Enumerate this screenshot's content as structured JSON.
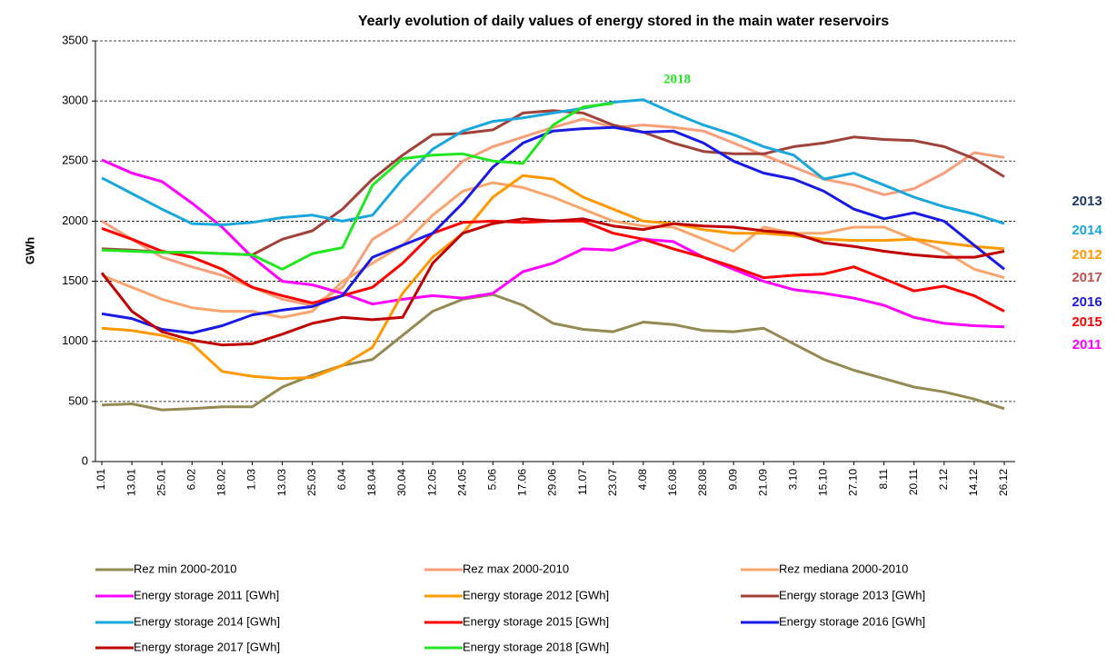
{
  "chart_data": {
    "type": "line",
    "title": "Yearly evolution of daily values of energy stored in the main water reservoirs",
    "y_label": "GWh",
    "categories": [
      "1.01",
      "13.01",
      "25.01",
      "6.02",
      "18.02",
      "1.03",
      "13.03",
      "25.03",
      "6.04",
      "18.04",
      "30.04",
      "12.05",
      "24.05",
      "5.06",
      "17.06",
      "29.06",
      "11.07",
      "23.07",
      "4.08",
      "16.08",
      "28.08",
      "9.09",
      "21.09",
      "3.10",
      "15.10",
      "27.10",
      "8.11",
      "20.11",
      "2.12",
      "14.12",
      "26.12"
    ],
    "ylim": [
      0,
      3500
    ],
    "yticks": [
      0,
      500,
      1000,
      1500,
      2000,
      2500,
      3000,
      3500
    ],
    "grid": true,
    "series": [
      {
        "name": "Rez min 2000-2010",
        "color": "#948A54",
        "values": [
          470,
          480,
          430,
          440,
          455,
          455,
          620,
          720,
          800,
          850,
          1050,
          1250,
          1350,
          1390,
          1300,
          1150,
          1100,
          1080,
          1160,
          1140,
          1090,
          1080,
          1110,
          980,
          850,
          760,
          690,
          620,
          580,
          520,
          440
        ]
      },
      {
        "name": "Rez max 2000-2010",
        "color": "#F79E7A",
        "values": [
          2000,
          1850,
          1700,
          1620,
          1550,
          1450,
          1350,
          1300,
          1450,
          1850,
          2000,
          2250,
          2500,
          2620,
          2700,
          2780,
          2850,
          2780,
          2800,
          2780,
          2750,
          2650,
          2550,
          2450,
          2350,
          2300,
          2220,
          2270,
          2400,
          2570,
          2530
        ]
      },
      {
        "name": "Rez mediana 2000-2010",
        "color": "#F9A66E",
        "values": [
          1550,
          1450,
          1350,
          1280,
          1250,
          1250,
          1200,
          1250,
          1500,
          1650,
          1800,
          2050,
          2250,
          2320,
          2280,
          2200,
          2100,
          2000,
          1960,
          1950,
          1850,
          1750,
          1950,
          1900,
          1900,
          1950,
          1950,
          1850,
          1750,
          1600,
          1530
        ]
      },
      {
        "name": "Energy storage 2011 [GWh]",
        "color": "#FF00FF",
        "values": [
          2510,
          2400,
          2330,
          2150,
          1950,
          1700,
          1500,
          1470,
          1400,
          1310,
          1350,
          1380,
          1360,
          1400,
          1580,
          1650,
          1770,
          1760,
          1850,
          1830,
          1700,
          1600,
          1500,
          1430,
          1400,
          1360,
          1300,
          1200,
          1150,
          1130,
          1120
        ]
      },
      {
        "name": "Energy storage 2012 [GWh]",
        "color": "#FF9900",
        "values": [
          1110,
          1090,
          1050,
          980,
          750,
          710,
          690,
          700,
          800,
          950,
          1400,
          1700,
          1900,
          2200,
          2380,
          2350,
          2200,
          2100,
          2000,
          1980,
          1930,
          1900,
          1900,
          1880,
          1850,
          1840,
          1840,
          1850,
          1820,
          1790,
          1770
        ]
      },
      {
        "name": "Energy storage 2013 [GWh]",
        "color": "#A0413A",
        "values": [
          1770,
          1760,
          1740,
          1740,
          1730,
          1720,
          1850,
          1920,
          2100,
          2350,
          2550,
          2720,
          2730,
          2760,
          2900,
          2920,
          2900,
          2800,
          2740,
          2650,
          2580,
          2560,
          2560,
          2620,
          2650,
          2700,
          2680,
          2670,
          2620,
          2520,
          2370
        ]
      },
      {
        "name": "Energy storage 2014 [GWh]",
        "color": "#1AA7DB",
        "values": [
          2360,
          2230,
          2100,
          1980,
          1970,
          1990,
          2030,
          2050,
          2000,
          2050,
          2350,
          2600,
          2750,
          2830,
          2860,
          2900,
          2940,
          2990,
          3010,
          2900,
          2800,
          2720,
          2620,
          2550,
          2350,
          2400,
          2300,
          2200,
          2120,
          2060,
          1980
        ]
      },
      {
        "name": "Energy storage 2015 [GWh]",
        "color": "#FF0000",
        "values": [
          1940,
          1850,
          1750,
          1700,
          1600,
          1450,
          1380,
          1320,
          1380,
          1450,
          1650,
          1900,
          1990,
          2000,
          1990,
          2000,
          2000,
          1900,
          1850,
          1770,
          1700,
          1620,
          1530,
          1550,
          1560,
          1620,
          1520,
          1420,
          1460,
          1380,
          1250
        ]
      },
      {
        "name": "Energy storage 2016 [GWh]",
        "color": "#1A1AE6",
        "values": [
          1230,
          1190,
          1100,
          1070,
          1130,
          1220,
          1260,
          1290,
          1380,
          1700,
          1800,
          1900,
          2150,
          2450,
          2650,
          2750,
          2770,
          2780,
          2740,
          2750,
          2650,
          2500,
          2400,
          2350,
          2250,
          2100,
          2020,
          2070,
          2000,
          1800,
          1600
        ]
      },
      {
        "name": "Energy storage 2017 [GWh]",
        "color": "#C00000",
        "values": [
          1570,
          1250,
          1080,
          1010,
          970,
          980,
          1060,
          1150,
          1200,
          1180,
          1200,
          1650,
          1900,
          1980,
          2020,
          2000,
          2020,
          1960,
          1930,
          1980,
          1960,
          1950,
          1920,
          1900,
          1820,
          1790,
          1750,
          1720,
          1700,
          1700,
          1750
        ]
      },
      {
        "name": "Energy storage 2018 [GWh]",
        "color": "#22E622",
        "values": [
          1760,
          1750,
          1740,
          1740,
          1730,
          1720,
          1600,
          1730,
          1780,
          2300,
          2520,
          2550,
          2560,
          2500,
          2480,
          2800,
          2950,
          2980,
          null,
          null,
          null,
          null,
          null,
          null,
          null,
          null,
          null,
          null,
          null,
          null,
          null
        ]
      }
    ],
    "annotations": [
      {
        "text": "2018",
        "color": "#22E622"
      },
      {
        "text": "2013",
        "color": "#1F3864"
      },
      {
        "text": "2014",
        "color": "#1AA7DB"
      },
      {
        "text": "2012",
        "color": "#FF9900"
      },
      {
        "text": "2017",
        "color": "#C0504D"
      },
      {
        "text": "2016",
        "color": "#1A1AE6"
      },
      {
        "text": "2015",
        "color": "#FF0000"
      },
      {
        "text": "2011",
        "color": "#FF00FF"
      }
    ]
  }
}
